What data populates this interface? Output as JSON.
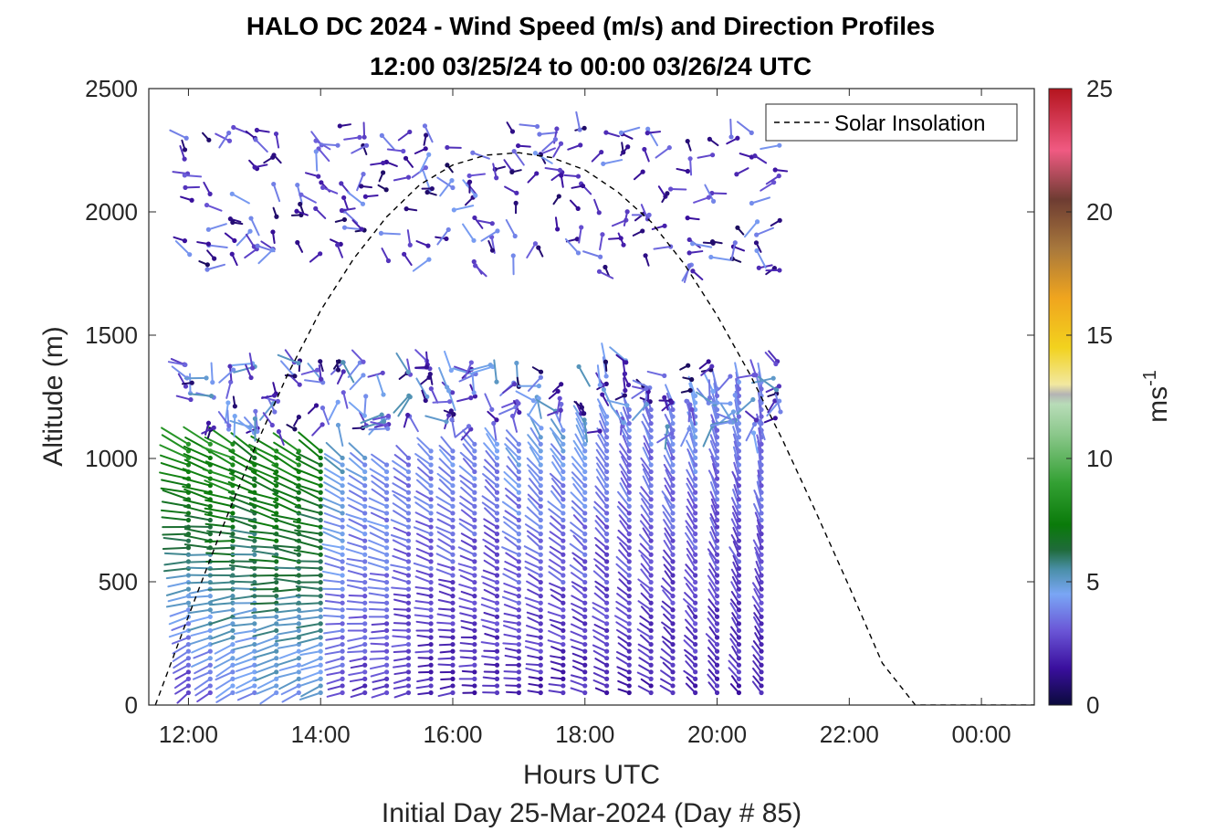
{
  "chart_data": {
    "type": "scatter",
    "title": "HALO DC 2024 - Wind Speed (m/s) and Direction Profiles",
    "subtitle": "12:00 03/25/24 to 00:00 03/26/24  UTC",
    "xlabel": "Hours UTC",
    "xlabel2": "Initial Day 25-Mar-2024 (Day # 85)",
    "ylabel": "Altitude (m)",
    "xlim": [
      11.4,
      24.8
    ],
    "ylim": [
      0,
      2500
    ],
    "x_ticks": [
      {
        "value": 12,
        "label": "12:00"
      },
      {
        "value": 14,
        "label": "14:00"
      },
      {
        "value": 16,
        "label": "16:00"
      },
      {
        "value": 18,
        "label": "18:00"
      },
      {
        "value": 20,
        "label": "20:00"
      },
      {
        "value": 22,
        "label": "22:00"
      },
      {
        "value": 24,
        "label": "00:00"
      }
    ],
    "y_ticks": [
      {
        "value": 0,
        "label": "0"
      },
      {
        "value": 500,
        "label": "500"
      },
      {
        "value": 1000,
        "label": "1000"
      },
      {
        "value": 1500,
        "label": "1500"
      },
      {
        "value": 2000,
        "label": "2000"
      },
      {
        "value": 2500,
        "label": "2500"
      }
    ],
    "colorbar": {
      "label": "ms",
      "label_exponent": "-1",
      "range": [
        0,
        25
      ],
      "ticks": [
        {
          "value": 0,
          "label": "0"
        },
        {
          "value": 5,
          "label": "5"
        },
        {
          "value": 10,
          "label": "10"
        },
        {
          "value": 15,
          "label": "15"
        },
        {
          "value": 20,
          "label": "20"
        },
        {
          "value": 25,
          "label": "25"
        }
      ],
      "stops": [
        {
          "v": 0,
          "c": "#0a0a3c"
        },
        {
          "v": 1.5,
          "c": "#3a0f9e"
        },
        {
          "v": 3,
          "c": "#6a55d6"
        },
        {
          "v": 4.5,
          "c": "#7aa6f5"
        },
        {
          "v": 5.5,
          "c": "#4a8fa8"
        },
        {
          "v": 6.3,
          "c": "#1f6b3a"
        },
        {
          "v": 7.3,
          "c": "#0a7a0a"
        },
        {
          "v": 9,
          "c": "#33a033"
        },
        {
          "v": 11,
          "c": "#8cc88c"
        },
        {
          "v": 12.2,
          "c": "#b8dcb8"
        },
        {
          "v": 12.6,
          "c": "#b4b4b4"
        },
        {
          "v": 13,
          "c": "#f2e8a0"
        },
        {
          "v": 14.5,
          "c": "#f2d21e"
        },
        {
          "v": 16.5,
          "c": "#f0a51e"
        },
        {
          "v": 18.5,
          "c": "#a8783c"
        },
        {
          "v": 20.5,
          "c": "#6e3c32"
        },
        {
          "v": 22.5,
          "c": "#f05a82"
        },
        {
          "v": 25,
          "c": "#b4141e"
        }
      ]
    },
    "series": [
      {
        "name": "Solar Insolation",
        "style": "dashed",
        "color": "#000000",
        "x": [
          11.5,
          12.0,
          12.5,
          13.0,
          13.5,
          14.0,
          14.5,
          15.0,
          15.5,
          16.0,
          16.5,
          17.0,
          17.5,
          18.0,
          18.5,
          19.0,
          19.5,
          20.0,
          20.5,
          21.0,
          21.5,
          22.0,
          22.5,
          23.0,
          23.5,
          24.0,
          24.5,
          24.8
        ],
        "y": [
          0,
          360,
          710,
          1040,
          1340,
          1600,
          1810,
          1980,
          2110,
          2190,
          2230,
          2240,
          2220,
          2170,
          2080,
          1960,
          1790,
          1580,
          1340,
          1070,
          780,
          480,
          170,
          0,
          0,
          0,
          0,
          0
        ]
      }
    ],
    "wind_profiles": {
      "units": "m/s",
      "arrow_style": "line segment with dot at station point",
      "time_columns": [
        {
          "x": 12.0,
          "alt_bottom": 50,
          "alt_top": 1080,
          "speed_bottom": 2.5,
          "speed_top": 8.5,
          "dir_bottom": 230,
          "dir_top": 300
        },
        {
          "x": 12.33,
          "alt_bottom": 50,
          "alt_top": 1060,
          "speed_bottom": 3.5,
          "speed_top": 8.0,
          "dir_bottom": 235,
          "dir_top": 300
        },
        {
          "x": 12.67,
          "alt_bottom": 50,
          "alt_top": 1060,
          "speed_bottom": 4.0,
          "speed_top": 8.5,
          "dir_bottom": 235,
          "dir_top": 300
        },
        {
          "x": 13.0,
          "alt_bottom": 50,
          "alt_top": 1050,
          "speed_bottom": 4.0,
          "speed_top": 7.5,
          "dir_bottom": 240,
          "dir_top": 305
        },
        {
          "x": 13.33,
          "alt_bottom": 50,
          "alt_top": 1050,
          "speed_bottom": 4.5,
          "speed_top": 8.0,
          "dir_bottom": 240,
          "dir_top": 305
        },
        {
          "x": 13.67,
          "alt_bottom": 50,
          "alt_top": 1040,
          "speed_bottom": 4.5,
          "speed_top": 8.0,
          "dir_bottom": 245,
          "dir_top": 305
        },
        {
          "x": 14.0,
          "alt_bottom": 50,
          "alt_top": 1030,
          "speed_bottom": 4.5,
          "speed_top": 7.5,
          "dir_bottom": 245,
          "dir_top": 305
        },
        {
          "x": 14.33,
          "alt_bottom": 50,
          "alt_top": 1020,
          "speed_bottom": 3.0,
          "speed_top": 5.0,
          "dir_bottom": 250,
          "dir_top": 310
        },
        {
          "x": 14.67,
          "alt_bottom": 50,
          "alt_top": 1010,
          "speed_bottom": 2.5,
          "speed_top": 4.5,
          "dir_bottom": 250,
          "dir_top": 310
        },
        {
          "x": 15.0,
          "alt_bottom": 50,
          "alt_top": 1000,
          "speed_bottom": 2.5,
          "speed_top": 4.5,
          "dir_bottom": 255,
          "dir_top": 310
        },
        {
          "x": 15.33,
          "alt_bottom": 50,
          "alt_top": 1010,
          "speed_bottom": 2.5,
          "speed_top": 4.0,
          "dir_bottom": 255,
          "dir_top": 315
        },
        {
          "x": 15.67,
          "alt_bottom": 50,
          "alt_top": 1030,
          "speed_bottom": 2.0,
          "speed_top": 4.0,
          "dir_bottom": 260,
          "dir_top": 315
        },
        {
          "x": 16.0,
          "alt_bottom": 50,
          "alt_top": 1050,
          "speed_bottom": 2.0,
          "speed_top": 4.0,
          "dir_bottom": 260,
          "dir_top": 320
        },
        {
          "x": 16.33,
          "alt_bottom": 50,
          "alt_top": 1060,
          "speed_bottom": 2.0,
          "speed_top": 4.0,
          "dir_bottom": 265,
          "dir_top": 320
        },
        {
          "x": 16.67,
          "alt_bottom": 50,
          "alt_top": 1070,
          "speed_bottom": 2.0,
          "speed_top": 4.0,
          "dir_bottom": 270,
          "dir_top": 325
        },
        {
          "x": 17.0,
          "alt_bottom": 50,
          "alt_top": 1080,
          "speed_bottom": 2.0,
          "speed_top": 4.5,
          "dir_bottom": 270,
          "dir_top": 325
        },
        {
          "x": 17.33,
          "alt_bottom": 50,
          "alt_top": 1100,
          "speed_bottom": 2.0,
          "speed_top": 4.5,
          "dir_bottom": 275,
          "dir_top": 330
        },
        {
          "x": 17.67,
          "alt_bottom": 50,
          "alt_top": 1120,
          "speed_bottom": 2.0,
          "speed_top": 4.5,
          "dir_bottom": 280,
          "dir_top": 330
        },
        {
          "x": 18.0,
          "alt_bottom": 50,
          "alt_top": 1150,
          "speed_bottom": 2.0,
          "speed_top": 4.5,
          "dir_bottom": 285,
          "dir_top": 335
        },
        {
          "x": 18.33,
          "alt_bottom": 50,
          "alt_top": 1170,
          "speed_bottom": 2.0,
          "speed_top": 4.0,
          "dir_bottom": 290,
          "dir_top": 335
        },
        {
          "x": 18.67,
          "alt_bottom": 50,
          "alt_top": 1200,
          "speed_bottom": 2.0,
          "speed_top": 4.0,
          "dir_bottom": 295,
          "dir_top": 340
        },
        {
          "x": 19.0,
          "alt_bottom": 50,
          "alt_top": 1220,
          "speed_bottom": 2.0,
          "speed_top": 4.0,
          "dir_bottom": 300,
          "dir_top": 340
        },
        {
          "x": 19.33,
          "alt_bottom": 50,
          "alt_top": 1250,
          "speed_bottom": 2.0,
          "speed_top": 4.0,
          "dir_bottom": 305,
          "dir_top": 345
        },
        {
          "x": 19.67,
          "alt_bottom": 50,
          "alt_top": 1270,
          "speed_bottom": 2.0,
          "speed_top": 4.5,
          "dir_bottom": 310,
          "dir_top": 345
        },
        {
          "x": 20.0,
          "alt_bottom": 50,
          "alt_top": 1300,
          "speed_bottom": 2.0,
          "speed_top": 4.0,
          "dir_bottom": 315,
          "dir_top": 350
        },
        {
          "x": 20.33,
          "alt_bottom": 50,
          "alt_top": 1320,
          "speed_bottom": 2.0,
          "speed_top": 4.0,
          "dir_bottom": 320,
          "dir_top": 350
        },
        {
          "x": 20.67,
          "alt_bottom": 50,
          "alt_top": 1330,
          "speed_bottom": 2.0,
          "speed_top": 4.0,
          "dir_bottom": 325,
          "dir_top": 355
        }
      ],
      "upper_layers": [
        {
          "alt_range": [
            1100,
            1400
          ],
          "x_range": [
            12.0,
            21.0
          ],
          "speed_range": [
            0.5,
            7.5
          ],
          "dir_range": [
            150,
            360
          ]
        },
        {
          "alt_range": [
            1750,
            2350
          ],
          "x_range": [
            12.0,
            21.0
          ],
          "speed_range": [
            0.5,
            6.0
          ],
          "dir_range": [
            60,
            360
          ]
        }
      ]
    }
  }
}
